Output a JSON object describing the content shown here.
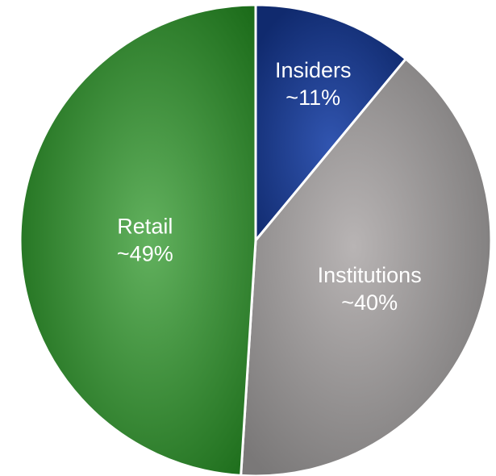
{
  "chart_data": {
    "type": "pie",
    "start": "12 o'clock",
    "direction": "clockwise",
    "slices": [
      {
        "name": "Insiders",
        "value_label": "~11%",
        "value": 11,
        "color": "#1e3f8f"
      },
      {
        "name": "Institutions",
        "value_label": "~40%",
        "value": 40,
        "color": "#a9a6a6"
      },
      {
        "name": "Retail",
        "value_label": "~49%",
        "value": 49,
        "color": "#3f963a"
      }
    ],
    "legend": "none",
    "title": ""
  }
}
